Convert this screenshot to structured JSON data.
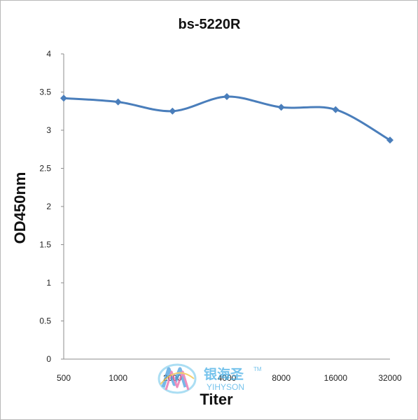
{
  "chart_data": {
    "type": "line",
    "title": "bs-5220R",
    "xlabel": "Titer",
    "ylabel": "OD450nm",
    "categories": [
      "500",
      "1000",
      "2000",
      "4000",
      "8000",
      "16000",
      "32000"
    ],
    "series": [
      {
        "values": [
          3.42,
          3.37,
          3.25,
          3.44,
          3.3,
          3.27,
          2.87
        ]
      }
    ],
    "yticks": [
      "0",
      "0.5",
      "1",
      "1.5",
      "2",
      "2.5",
      "3",
      "3.5",
      "4"
    ],
    "ylim": [
      0,
      4
    ],
    "grid": false,
    "legend": "none",
    "line_color": "#4a7ebb"
  },
  "watermark": {
    "cn": "银海圣",
    "en": "YIHYSON",
    "tm": "TM"
  }
}
